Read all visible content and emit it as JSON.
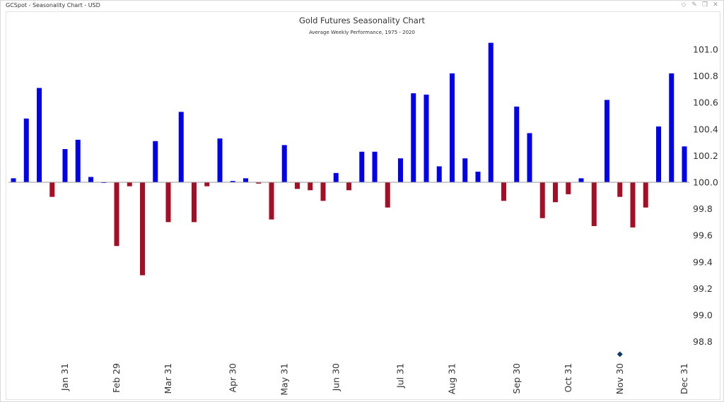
{
  "window": {
    "title": "GCSpot - Seasonality Chart - USD",
    "controls": [
      "diamond-icon",
      "pin-icon",
      "restore-icon",
      "close-icon"
    ]
  },
  "colors": {
    "positive": "#0000ee",
    "negative": "#a50e25",
    "baseline": "#999999",
    "marker": "#0c3d6b"
  },
  "chart_data": {
    "type": "bar",
    "title": "Gold Futures Seasonality Chart",
    "subtitle": "Average Weekly Performance, 1975 - 2020",
    "xlabel": "",
    "ylabel": "",
    "baseline": 100.0,
    "ylim": [
      98.65,
      101.1
    ],
    "yticks": [
      98.8,
      99.0,
      99.2,
      99.4,
      99.6,
      99.8,
      100.0,
      100.2,
      100.4,
      100.6,
      100.8,
      101.0
    ],
    "ytick_labels": [
      "98.8",
      "99.0",
      "99.2",
      "99.4",
      "99.6",
      "99.8",
      "100.0",
      "100.2",
      "100.4",
      "100.6",
      "100.8",
      "101.0"
    ],
    "values": [
      100.03,
      100.48,
      100.71,
      99.89,
      100.25,
      100.32,
      100.04,
      100.0,
      99.52,
      99.97,
      99.3,
      100.31,
      99.7,
      100.53,
      99.7,
      99.97,
      100.33,
      100.01,
      100.03,
      99.99,
      99.72,
      100.28,
      99.95,
      99.94,
      99.86,
      100.07,
      99.94,
      100.23,
      100.23,
      99.81,
      100.18,
      100.67,
      100.66,
      100.12,
      100.82,
      100.18,
      100.08,
      101.05,
      99.86,
      100.57,
      100.37,
      99.73,
      99.85,
      99.91,
      100.03,
      99.67,
      100.62,
      99.89,
      99.66,
      99.81,
      100.42,
      100.82,
      100.27
    ],
    "month_labels": [
      {
        "label": "Jan 31",
        "week": 4
      },
      {
        "label": "Feb 29",
        "week": 8
      },
      {
        "label": "Mar 31",
        "week": 12
      },
      {
        "label": "Apr 30",
        "week": 17
      },
      {
        "label": "May 31",
        "week": 21
      },
      {
        "label": "Jun 30",
        "week": 25
      },
      {
        "label": "Jul 31",
        "week": 30
      },
      {
        "label": "Aug 31",
        "week": 34
      },
      {
        "label": "Sep 30",
        "week": 39
      },
      {
        "label": "Oct 31",
        "week": 43
      },
      {
        "label": "Nov 30",
        "week": 47
      },
      {
        "label": "Dec 31",
        "week": 52
      }
    ],
    "current_marker": {
      "week": 47,
      "value": 98.7
    }
  }
}
